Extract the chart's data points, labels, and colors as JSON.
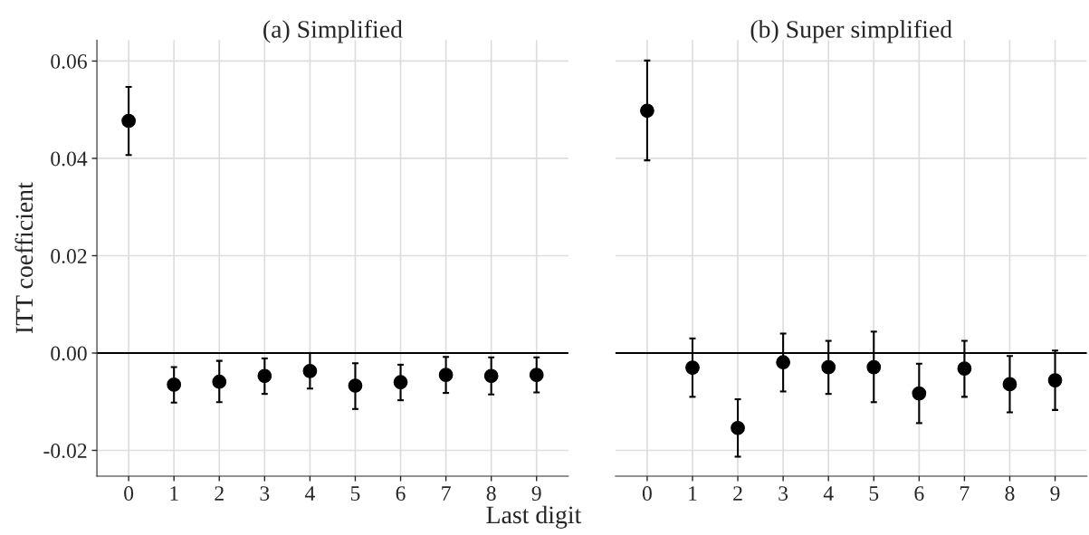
{
  "chart_data": [
    {
      "type": "scatter",
      "title": "(a) Simplified",
      "xlabel": "Last digit",
      "ylabel": "ITT coefficient",
      "categories": [
        "0",
        "1",
        "2",
        "3",
        "4",
        "5",
        "6",
        "7",
        "8",
        "9"
      ],
      "values": [
        0.0477,
        -0.0065,
        -0.0059,
        -0.0047,
        -0.0037,
        -0.0067,
        -0.006,
        -0.0045,
        -0.0047,
        -0.0045
      ],
      "errors": [
        [
          0.0407,
          0.0547
        ],
        [
          -0.0102,
          -0.0029
        ],
        [
          -0.0101,
          -0.0016
        ],
        [
          -0.0084,
          -0.0011
        ],
        [
          -0.0073,
          0.0
        ],
        [
          -0.0115,
          -0.0021
        ],
        [
          -0.0097,
          -0.0024
        ],
        [
          -0.0082,
          -0.0008
        ],
        [
          -0.0085,
          -0.0009
        ],
        [
          -0.0081,
          -0.0009
        ]
      ],
      "color": "#000000",
      "marker": "circle",
      "ylim": [
        -0.0253,
        0.0643
      ],
      "yticks": [
        {
          "value": -0.02,
          "label": "-0.02"
        },
        {
          "value": 0,
          "label": "0.00"
        },
        {
          "value": 0.02,
          "label": "0.02"
        },
        {
          "value": 0.04,
          "label": "0.04"
        },
        {
          "value": 0.06,
          "label": "0.06"
        }
      ],
      "ref_lines": [
        {
          "axis": "y",
          "value": 0,
          "color": "#000000"
        }
      ],
      "grid": true
    },
    {
      "type": "scatter",
      "title": "(b) Super simplified",
      "categories": [
        "0",
        "1",
        "2",
        "3",
        "4",
        "5",
        "6",
        "7",
        "8",
        "9"
      ],
      "values": [
        0.0498,
        -0.003,
        -0.0154,
        -0.0019,
        -0.0029,
        -0.0029,
        -0.0083,
        -0.0032,
        -0.0064,
        -0.0056
      ],
      "errors": [
        [
          0.0396,
          0.0601
        ],
        [
          -0.009,
          0.003
        ],
        [
          -0.0213,
          -0.0095
        ],
        [
          -0.0079,
          0.004
        ],
        [
          -0.0084,
          0.0025
        ],
        [
          -0.0101,
          0.0044
        ],
        [
          -0.0144,
          -0.0022
        ],
        [
          -0.009,
          0.0025
        ],
        [
          -0.0122,
          -0.0006
        ],
        [
          -0.0117,
          0.0005
        ]
      ],
      "color": "#000000",
      "marker": "circle",
      "ylim": [
        -0.0253,
        0.0643
      ],
      "yticks": [
        {
          "value": -0.02,
          "label": null
        },
        {
          "value": 0,
          "label": null
        },
        {
          "value": 0.02,
          "label": null
        },
        {
          "value": 0.04,
          "label": null
        },
        {
          "value": 0.06,
          "label": null
        }
      ],
      "tick_labels": "x",
      "ref_lines": [
        {
          "axis": "y",
          "value": 0,
          "color": "#000000"
        }
      ],
      "grid": true
    }
  ]
}
